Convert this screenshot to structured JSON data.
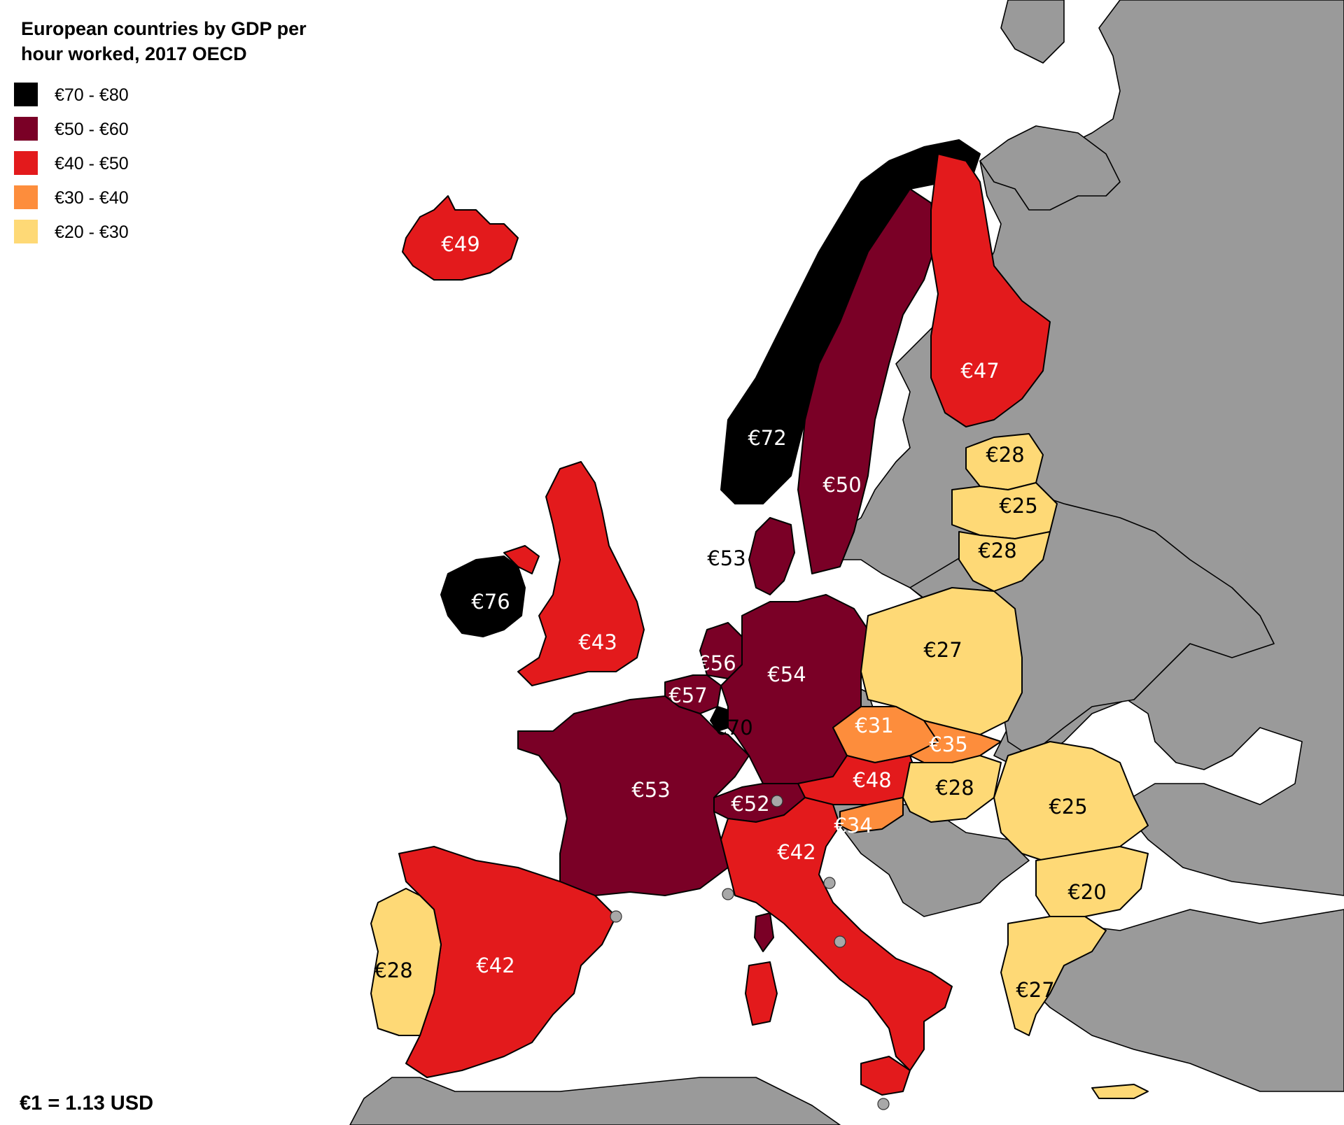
{
  "title_line1": "European countries by GDP per",
  "title_line2": "hour worked, 2017 OECD",
  "note": "€1 = 1.13 USD",
  "colors": {
    "c70_80": "#000000",
    "c50_60": "#7a0026",
    "c40_50": "#e31a1c",
    "c30_40": "#fd8d3c",
    "c20_30": "#fed976",
    "no_data": "#9a9a9a",
    "sea": "#ffffff"
  },
  "legend": [
    {
      "label": "€70 - €80",
      "color": "#000000"
    },
    {
      "label": "€50 - €60",
      "color": "#7a0026"
    },
    {
      "label": "€40 - €50",
      "color": "#e31a1c"
    },
    {
      "label": "€30 - €40",
      "color": "#fd8d3c"
    },
    {
      "label": "€20 - €30",
      "color": "#fed976"
    }
  ],
  "countries": [
    {
      "id": "iceland",
      "value_label": "€49",
      "value": 49,
      "color": "#e31a1c"
    },
    {
      "id": "norway",
      "value_label": "€72",
      "value": 72,
      "color": "#000000"
    },
    {
      "id": "sweden",
      "value_label": "€50",
      "value": 50,
      "color": "#7a0026"
    },
    {
      "id": "finland",
      "value_label": "€47",
      "value": 47,
      "color": "#e31a1c"
    },
    {
      "id": "estonia",
      "value_label": "€28",
      "value": 28,
      "color": "#fed976"
    },
    {
      "id": "latvia",
      "value_label": "€25",
      "value": 25,
      "color": "#fed976"
    },
    {
      "id": "lithuania",
      "value_label": "€28",
      "value": 28,
      "color": "#fed976"
    },
    {
      "id": "denmark",
      "value_label": "€53",
      "value": 53,
      "color": "#7a0026"
    },
    {
      "id": "ireland",
      "value_label": "€76",
      "value": 76,
      "color": "#000000"
    },
    {
      "id": "united-kingdom",
      "value_label": "€43",
      "value": 43,
      "color": "#e31a1c"
    },
    {
      "id": "netherlands",
      "value_label": "€56",
      "value": 56,
      "color": "#7a0026"
    },
    {
      "id": "belgium",
      "value_label": "€57",
      "value": 57,
      "color": "#7a0026"
    },
    {
      "id": "luxembourg",
      "value_label": "€70",
      "value": 70,
      "color": "#000000"
    },
    {
      "id": "germany",
      "value_label": "€54",
      "value": 54,
      "color": "#7a0026"
    },
    {
      "id": "poland",
      "value_label": "€27",
      "value": 27,
      "color": "#fed976"
    },
    {
      "id": "czechia",
      "value_label": "€31",
      "value": 31,
      "color": "#fd8d3c"
    },
    {
      "id": "slovakia",
      "value_label": "€35",
      "value": 35,
      "color": "#fd8d3c"
    },
    {
      "id": "austria",
      "value_label": "€48",
      "value": 48,
      "color": "#e31a1c"
    },
    {
      "id": "hungary",
      "value_label": "€28",
      "value": 28,
      "color": "#fed976"
    },
    {
      "id": "slovenia",
      "value_label": "€34",
      "value": 34,
      "color": "#fd8d3c"
    },
    {
      "id": "switzerland",
      "value_label": "€52",
      "value": 52,
      "color": "#7a0026"
    },
    {
      "id": "france",
      "value_label": "€53",
      "value": 53,
      "color": "#7a0026"
    },
    {
      "id": "italy",
      "value_label": "€42",
      "value": 42,
      "color": "#e31a1c"
    },
    {
      "id": "spain",
      "value_label": "€42",
      "value": 42,
      "color": "#e31a1c"
    },
    {
      "id": "portugal",
      "value_label": "€28",
      "value": 28,
      "color": "#fed976"
    },
    {
      "id": "romania",
      "value_label": "€25",
      "value": 25,
      "color": "#fed976"
    },
    {
      "id": "bulgaria",
      "value_label": "€20",
      "value": 20,
      "color": "#fed976"
    },
    {
      "id": "greece",
      "value_label": "€27",
      "value": 27,
      "color": "#fed976"
    }
  ]
}
